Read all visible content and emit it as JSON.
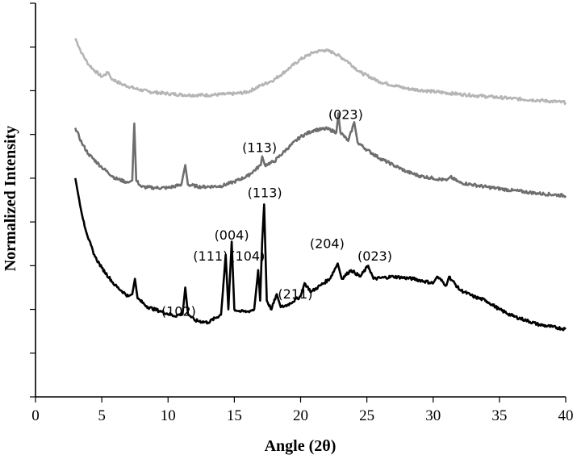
{
  "chart_data": {
    "type": "line",
    "title": "",
    "xlabel": "Angle (2θ)",
    "ylabel": "Normalized Intensity",
    "xlim": [
      0,
      40
    ],
    "ylim": [
      0,
      9
    ],
    "x_ticks": [
      "0",
      "5",
      "10",
      "15",
      "20",
      "25",
      "30",
      "35",
      "40"
    ],
    "y_tick_count": 10,
    "y_tick_labels_shown": false,
    "grid": false,
    "legend": "none",
    "series": [
      {
        "color": "#b5b5b5",
        "points": [
          [
            3,
            8.2
          ],
          [
            3.5,
            7.85
          ],
          [
            4,
            7.6
          ],
          [
            4.5,
            7.45
          ],
          [
            5,
            7.32
          ],
          [
            5.5,
            7.42
          ],
          [
            5.7,
            7.28
          ],
          [
            6.5,
            7.15
          ],
          [
            7.5,
            7.05
          ],
          [
            8.5,
            6.98
          ],
          [
            10,
            6.93
          ],
          [
            11.5,
            6.9
          ],
          [
            13,
            6.9
          ],
          [
            15,
            6.93
          ],
          [
            16,
            6.97
          ],
          [
            17,
            7.12
          ],
          [
            18,
            7.25
          ],
          [
            19,
            7.48
          ],
          [
            20,
            7.72
          ],
          [
            21,
            7.88
          ],
          [
            21.8,
            7.93
          ],
          [
            22.5,
            7.87
          ],
          [
            23.5,
            7.68
          ],
          [
            24.5,
            7.42
          ],
          [
            26,
            7.2
          ],
          [
            28,
            7.05
          ],
          [
            30,
            6.98
          ],
          [
            32,
            6.92
          ],
          [
            34,
            6.87
          ],
          [
            36,
            6.82
          ],
          [
            38,
            6.78
          ],
          [
            40,
            6.73
          ]
        ]
      },
      {
        "color": "#6e6e6e",
        "points": [
          [
            3,
            6.15
          ],
          [
            3.5,
            5.8
          ],
          [
            4,
            5.55
          ],
          [
            5,
            5.25
          ],
          [
            6,
            5.0
          ],
          [
            7,
            4.9
          ],
          [
            7.3,
            4.95
          ],
          [
            7.45,
            6.25
          ],
          [
            7.6,
            4.95
          ],
          [
            8,
            4.8
          ],
          [
            9,
            4.78
          ],
          [
            10,
            4.78
          ],
          [
            11,
            4.85
          ],
          [
            11.3,
            5.3
          ],
          [
            11.5,
            4.85
          ],
          [
            12.5,
            4.8
          ],
          [
            14,
            4.82
          ],
          [
            15,
            4.92
          ],
          [
            16,
            5.05
          ],
          [
            17,
            5.3
          ],
          [
            17.1,
            5.5
          ],
          [
            17.3,
            5.3
          ],
          [
            18,
            5.38
          ],
          [
            19,
            5.68
          ],
          [
            20,
            5.95
          ],
          [
            21,
            6.1
          ],
          [
            22,
            6.13
          ],
          [
            22.7,
            6.05
          ],
          [
            22.85,
            6.48
          ],
          [
            23,
            6.05
          ],
          [
            23.6,
            5.85
          ],
          [
            24.05,
            6.28
          ],
          [
            24.3,
            5.82
          ],
          [
            25,
            5.65
          ],
          [
            26,
            5.45
          ],
          [
            27,
            5.3
          ],
          [
            28,
            5.15
          ],
          [
            29,
            5.05
          ],
          [
            30,
            5.0
          ],
          [
            31,
            4.95
          ],
          [
            31.3,
            5.03
          ],
          [
            32,
            4.9
          ],
          [
            34,
            4.8
          ],
          [
            36,
            4.72
          ],
          [
            38,
            4.65
          ],
          [
            40,
            4.6
          ]
        ]
      },
      {
        "color": "#000000",
        "points": [
          [
            3,
            5.0
          ],
          [
            3.3,
            4.5
          ],
          [
            3.7,
            3.9
          ],
          [
            4,
            3.6
          ],
          [
            4.5,
            3.2
          ],
          [
            5,
            2.95
          ],
          [
            6,
            2.55
          ],
          [
            7,
            2.3
          ],
          [
            7.3,
            2.35
          ],
          [
            7.5,
            2.7
          ],
          [
            7.7,
            2.25
          ],
          [
            8.5,
            2.05
          ],
          [
            9.5,
            1.95
          ],
          [
            10.5,
            1.85
          ],
          [
            11.1,
            1.9
          ],
          [
            11.3,
            2.5
          ],
          [
            11.5,
            1.9
          ],
          [
            12,
            1.75
          ],
          [
            13,
            1.7
          ],
          [
            14,
            1.88
          ],
          [
            14.35,
            3.25
          ],
          [
            14.55,
            2.0
          ],
          [
            14.8,
            3.55
          ],
          [
            15,
            2.0
          ],
          [
            15.5,
            1.95
          ],
          [
            16,
            1.95
          ],
          [
            16.5,
            2.0
          ],
          [
            16.8,
            2.9
          ],
          [
            16.95,
            2.2
          ],
          [
            17.1,
            3.55
          ],
          [
            17.25,
            4.4
          ],
          [
            17.45,
            2.2
          ],
          [
            17.8,
            2.0
          ],
          [
            18.2,
            2.35
          ],
          [
            18.5,
            2.05
          ],
          [
            19,
            2.1
          ],
          [
            20,
            2.3
          ],
          [
            20.3,
            2.6
          ],
          [
            20.8,
            2.4
          ],
          [
            21.5,
            2.55
          ],
          [
            22.2,
            2.7
          ],
          [
            22.8,
            3.05
          ],
          [
            23.1,
            2.7
          ],
          [
            23.8,
            2.9
          ],
          [
            24.5,
            2.75
          ],
          [
            25.1,
            3.0
          ],
          [
            25.5,
            2.7
          ],
          [
            27,
            2.75
          ],
          [
            28.5,
            2.7
          ],
          [
            30,
            2.6
          ],
          [
            30.3,
            2.75
          ],
          [
            31,
            2.55
          ],
          [
            31.2,
            2.75
          ],
          [
            32,
            2.45
          ],
          [
            33,
            2.3
          ],
          [
            34,
            2.2
          ],
          [
            35,
            2.0
          ],
          [
            36,
            1.85
          ],
          [
            37,
            1.75
          ],
          [
            38,
            1.65
          ],
          [
            39,
            1.6
          ],
          [
            40,
            1.55
          ]
        ]
      }
    ],
    "annotations": [
      {
        "text": "(023)",
        "x": 23.4,
        "y": 6.35
      },
      {
        "text": "(113)",
        "x": 16.9,
        "y": 5.6
      },
      {
        "text": "(113)",
        "x": 17.3,
        "y": 4.56
      },
      {
        "text": "(004)",
        "x": 14.8,
        "y": 3.6
      },
      {
        "text": "(111)",
        "x": 13.2,
        "y": 3.12
      },
      {
        "text": "(104)",
        "x": 16.0,
        "y": 3.12
      },
      {
        "text": "(204)",
        "x": 22.0,
        "y": 3.4
      },
      {
        "text": "(023)",
        "x": 25.6,
        "y": 3.12
      },
      {
        "text": "(211)",
        "x": 19.6,
        "y": 2.25
      },
      {
        "text": "(102)",
        "x": 10.8,
        "y": 1.85
      }
    ]
  }
}
